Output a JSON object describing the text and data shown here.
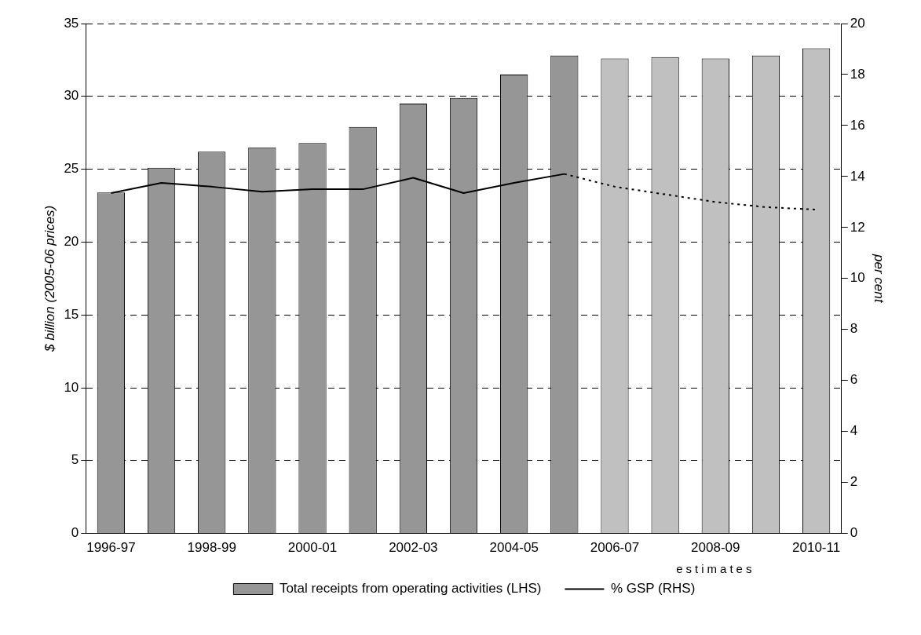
{
  "chart_data": {
    "type": "bar",
    "categories": [
      "1996-97",
      null,
      "1998-99",
      null,
      "2000-01",
      null,
      "2002-03",
      null,
      "2004-05",
      null,
      "2006-07",
      null,
      "2008-09",
      null,
      "2010-11"
    ],
    "ylabel": "$ billion (2005-06 prices)",
    "y2label": "per cent",
    "ylim": [
      0,
      35
    ],
    "yticks": [
      0,
      5,
      10,
      15,
      20,
      25,
      30,
      35
    ],
    "y2lim": [
      0,
      20
    ],
    "y2ticks": [
      0,
      2,
      4,
      6,
      8,
      10,
      12,
      14,
      16,
      18,
      20
    ],
    "grid": "y",
    "legend": "bottom",
    "marker": "none",
    "annotations": [
      "estimates"
    ],
    "series": [
      {
        "name": "Total receipts from operating activities (LHS)",
        "color": "#969696",
        "colors": [
          "#969696",
          "#969696",
          "#969696",
          "#969696",
          "#969696",
          "#969696",
          "#969696",
          "#969696",
          "#969696",
          "#969696",
          "#c0c0c0",
          "#c0c0c0",
          "#c0c0c0",
          "#c0c0c0",
          "#c0c0c0"
        ],
        "values": [
          23.4,
          25.1,
          26.2,
          26.5,
          26.8,
          27.9,
          29.5,
          29.9,
          31.5,
          32.8,
          32.6,
          32.7,
          32.6,
          32.8,
          33.3
        ]
      },
      {
        "name": "% GSP (RHS)",
        "type": "line",
        "axis": "y2",
        "color": "#000000",
        "line_style": "solid",
        "values": [
          13.35,
          13.75,
          13.6,
          13.4,
          13.5,
          13.5,
          13.95,
          13.35,
          13.75,
          14.1,
          null,
          null,
          null,
          null,
          null
        ]
      },
      {
        "type": "line",
        "axis": "y2",
        "color": "#000000",
        "line_style": "dotted",
        "values": [
          null,
          null,
          null,
          null,
          null,
          null,
          null,
          null,
          null,
          14.1,
          13.6,
          13.3,
          13.0,
          12.8,
          12.7
        ]
      }
    ]
  }
}
